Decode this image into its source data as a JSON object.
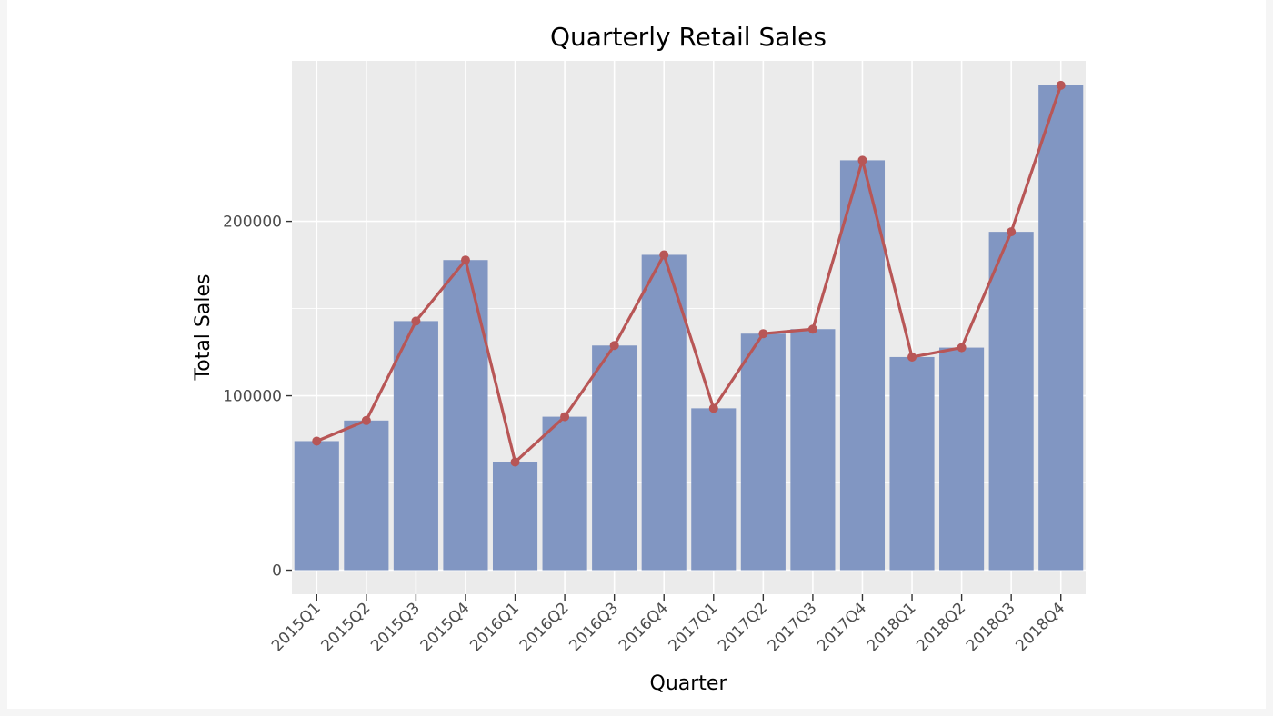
{
  "chart_data": {
    "type": "bar",
    "title": "Quarterly Retail Sales",
    "xlabel": "Quarter",
    "ylabel": "Total Sales",
    "categories": [
      "2015Q1",
      "2015Q2",
      "2015Q3",
      "2015Q4",
      "2016Q1",
      "2016Q2",
      "2016Q3",
      "2016Q4",
      "2017Q1",
      "2017Q2",
      "2017Q3",
      "2017Q4",
      "2018Q1",
      "2018Q2",
      "2018Q3",
      "2018Q4"
    ],
    "values": [
      74000,
      85800,
      142800,
      177800,
      62000,
      88000,
      128800,
      180800,
      92800,
      135600,
      138200,
      235000,
      122200,
      127600,
      194000,
      278000
    ],
    "line_overlay": true,
    "ylim": [
      -13800,
      292000
    ],
    "yticks": [
      0,
      100000,
      200000
    ],
    "ytick_labels": [
      "0",
      "100000",
      "200000"
    ],
    "grid": true,
    "legend": "none",
    "colors": {
      "panel_background": "#ebebeb",
      "grid": "#ffffff",
      "bar": "#8196c2",
      "line": "#b85656",
      "tick": "#333333"
    }
  }
}
